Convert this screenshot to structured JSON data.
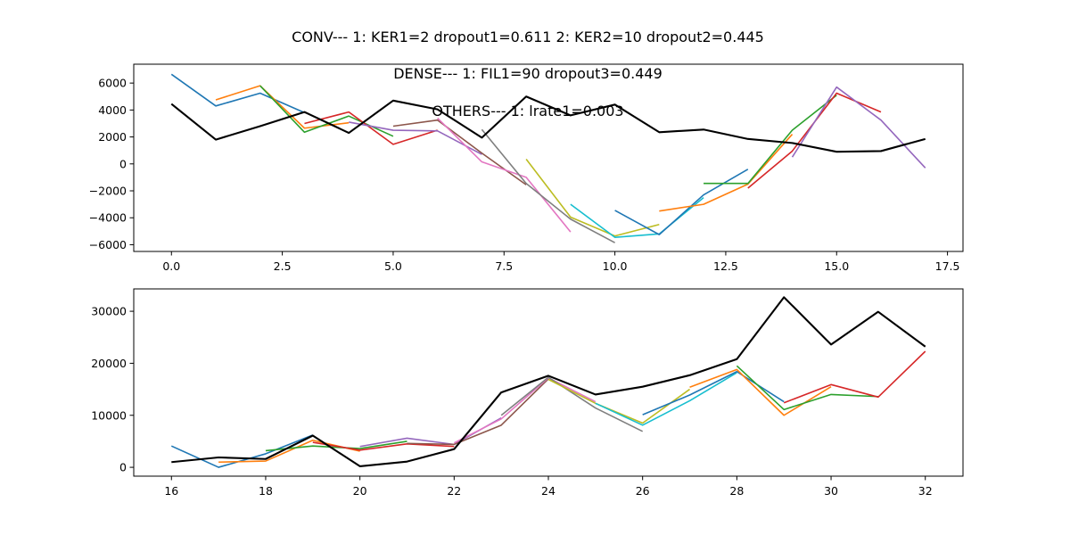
{
  "figure": {
    "title_line1": "CONV--- 1: KER1=2   dropout1=0.611   2: KER2=10   dropout2=0.445",
    "title_line2": "DENSE--- 1: FIL1=90   dropout3=0.449",
    "title_line3": "OTHERS--- 1: lrate1=0.003"
  },
  "chart_data": [
    {
      "type": "line",
      "title": "",
      "xlabel": "",
      "ylabel": "",
      "xlim": [
        -0.85,
        17.85
      ],
      "ylim": [
        -6500,
        7400
      ],
      "xticks": [
        0.0,
        2.5,
        5.0,
        7.5,
        10.0,
        12.5,
        15.0,
        17.5
      ],
      "xtick_labels": [
        "0.0",
        "2.5",
        "5.0",
        "7.5",
        "10.0",
        "12.5",
        "15.0",
        "17.5"
      ],
      "yticks": [
        -6000,
        -4000,
        -2000,
        0,
        2000,
        4000,
        6000
      ],
      "ytick_labels": [
        "−6000",
        "−4000",
        "−2000",
        "0",
        "2000",
        "4000",
        "6000"
      ],
      "grid": false,
      "series": [
        {
          "color": "#000000",
          "x": [
            0,
            1,
            2,
            3,
            4,
            5,
            6,
            7,
            8,
            9,
            10,
            11,
            12,
            13,
            14,
            15,
            16,
            17
          ],
          "values": [
            4450,
            1800,
            2800,
            3850,
            2300,
            4700,
            4050,
            1950,
            5000,
            3600,
            4400,
            2350,
            2550,
            1850,
            1550,
            900,
            950,
            1850
          ]
        },
        {
          "color": "#1f77b4",
          "x": [
            0,
            1,
            2,
            3
          ],
          "values": [
            6650,
            4300,
            5250,
            3800
          ]
        },
        {
          "color": "#ff7f0e",
          "x": [
            1,
            2,
            3,
            4
          ],
          "values": [
            4750,
            5800,
            2650,
            3050
          ]
        },
        {
          "color": "#2ca02c",
          "x": [
            2,
            3,
            4,
            5
          ],
          "values": [
            5800,
            2350,
            3550,
            2050
          ]
        },
        {
          "color": "#d62728",
          "x": [
            3,
            4,
            5,
            6
          ],
          "values": [
            3000,
            3850,
            1450,
            2500
          ]
        },
        {
          "color": "#9467bd",
          "x": [
            4,
            5,
            6,
            7
          ],
          "values": [
            3100,
            2500,
            2450,
            700
          ]
        },
        {
          "color": "#8c564b",
          "x": [
            5,
            6,
            7,
            8
          ],
          "values": [
            2800,
            3250,
            800,
            -1550
          ]
        },
        {
          "color": "#e377c2",
          "x": [
            6,
            7,
            8,
            9
          ],
          "values": [
            3400,
            150,
            -1000,
            -5050
          ]
        },
        {
          "color": "#7f7f7f",
          "x": [
            7,
            8,
            9,
            10
          ],
          "values": [
            2550,
            -1450,
            -4100,
            -5850
          ]
        },
        {
          "color": "#bcbd22",
          "x": [
            8,
            9,
            10,
            11
          ],
          "values": [
            350,
            -3950,
            -5350,
            -4500
          ]
        },
        {
          "color": "#17becf",
          "x": [
            9,
            10,
            11,
            12
          ],
          "values": [
            -3000,
            -5450,
            -5200,
            -2500
          ]
        },
        {
          "color": "#1f77b4",
          "x": [
            10,
            11,
            12,
            13
          ],
          "values": [
            -3450,
            -5250,
            -2300,
            -400
          ]
        },
        {
          "color": "#ff7f0e",
          "x": [
            11,
            12,
            13,
            14
          ],
          "values": [
            -3500,
            -3000,
            -1500,
            2200
          ]
        },
        {
          "color": "#2ca02c",
          "x": [
            12,
            13,
            14,
            15
          ],
          "values": [
            -1450,
            -1450,
            2500,
            5100
          ]
        },
        {
          "color": "#d62728",
          "x": [
            13,
            14,
            15,
            16
          ],
          "values": [
            -1800,
            950,
            5250,
            3850
          ]
        },
        {
          "color": "#9467bd",
          "x": [
            14,
            15,
            16,
            17
          ],
          "values": [
            500,
            5700,
            3250,
            -300
          ]
        }
      ]
    },
    {
      "type": "line",
      "title": "",
      "xlabel": "",
      "ylabel": "",
      "xlim": [
        15.2,
        32.8
      ],
      "ylim": [
        -1700,
        34300
      ],
      "xticks": [
        16,
        18,
        20,
        22,
        24,
        26,
        28,
        30,
        32
      ],
      "xtick_labels": [
        "16",
        "18",
        "20",
        "22",
        "24",
        "26",
        "28",
        "30",
        "32"
      ],
      "yticks": [
        0,
        10000,
        20000,
        30000
      ],
      "ytick_labels": [
        "0",
        "10000",
        "20000",
        "30000"
      ],
      "grid": false,
      "series": [
        {
          "color": "#000000",
          "x": [
            16,
            17,
            18,
            19,
            20,
            21,
            22,
            23,
            24,
            25,
            26,
            27,
            28,
            29,
            30,
            31,
            32
          ],
          "values": [
            1000,
            1900,
            1600,
            6100,
            200,
            1100,
            3500,
            14400,
            17600,
            14000,
            15500,
            17700,
            20800,
            32700,
            23600,
            29900,
            23200
          ]
        },
        {
          "color": "#1f77b4",
          "x": [
            16,
            17,
            18,
            19
          ],
          "values": [
            4100,
            0,
            2600,
            6200
          ]
        },
        {
          "color": "#ff7f0e",
          "x": [
            17,
            18,
            19,
            20
          ],
          "values": [
            1000,
            1200,
            5200,
            3100
          ]
        },
        {
          "color": "#2ca02c",
          "x": [
            18,
            19,
            20,
            21
          ],
          "values": [
            3200,
            4100,
            3600,
            5000
          ]
        },
        {
          "color": "#d62728",
          "x": [
            19,
            20,
            21,
            22
          ],
          "values": [
            4800,
            3300,
            4500,
            4000
          ]
        },
        {
          "color": "#9467bd",
          "x": [
            20,
            21,
            22,
            23
          ],
          "values": [
            4000,
            5600,
            4400,
            9500
          ]
        },
        {
          "color": "#8c564b",
          "x": [
            21,
            22,
            23,
            24
          ],
          "values": [
            4600,
            4400,
            8100,
            17000
          ]
        },
        {
          "color": "#e377c2",
          "x": [
            22,
            23,
            24,
            25
          ],
          "values": [
            4700,
            9300,
            17200,
            12600
          ]
        },
        {
          "color": "#7f7f7f",
          "x": [
            23,
            24,
            25,
            26
          ],
          "values": [
            10000,
            17300,
            11400,
            6900
          ]
        },
        {
          "color": "#bcbd22",
          "x": [
            24,
            25,
            26,
            27
          ],
          "values": [
            16900,
            12300,
            8500,
            15000
          ]
        },
        {
          "color": "#17becf",
          "x": [
            25,
            26,
            27,
            28
          ],
          "values": [
            12300,
            8100,
            12800,
            18200
          ]
        },
        {
          "color": "#1f77b4",
          "x": [
            26,
            27,
            28,
            29
          ],
          "values": [
            10100,
            13900,
            18400,
            12600
          ]
        },
        {
          "color": "#ff7f0e",
          "x": [
            27,
            28,
            29,
            30
          ],
          "values": [
            15400,
            18800,
            10000,
            15500
          ]
        },
        {
          "color": "#2ca02c",
          "x": [
            28,
            29,
            30,
            31
          ],
          "values": [
            19500,
            11100,
            14000,
            13600
          ]
        },
        {
          "color": "#d62728",
          "x": [
            29,
            30,
            31,
            32
          ],
          "values": [
            12400,
            15900,
            13500,
            22300
          ]
        }
      ]
    }
  ]
}
